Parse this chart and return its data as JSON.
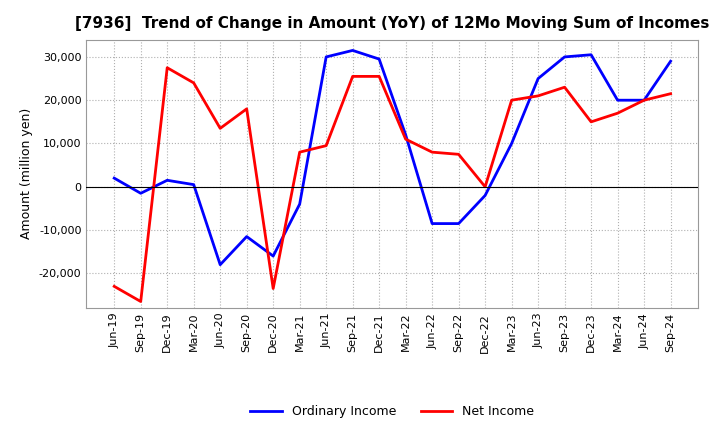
{
  "title": "[7936]  Trend of Change in Amount (YoY) of 12Mo Moving Sum of Incomes",
  "ylabel": "Amount (million yen)",
  "x_labels": [
    "Jun-19",
    "Sep-19",
    "Dec-19",
    "Mar-20",
    "Jun-20",
    "Sep-20",
    "Dec-20",
    "Mar-21",
    "Jun-21",
    "Sep-21",
    "Dec-21",
    "Mar-22",
    "Jun-22",
    "Sep-22",
    "Dec-22",
    "Mar-23",
    "Jun-23",
    "Sep-23",
    "Dec-23",
    "Mar-24",
    "Jun-24",
    "Sep-24"
  ],
  "ordinary_income": [
    2000,
    -1500,
    1500,
    500,
    -18000,
    -11500,
    -16000,
    -4000,
    30000,
    31500,
    29500,
    12000,
    -8500,
    -8500,
    -2000,
    10000,
    25000,
    30000,
    30500,
    20000,
    20000,
    29000
  ],
  "net_income": [
    -23000,
    -26500,
    27500,
    24000,
    13500,
    18000,
    -23500,
    8000,
    9500,
    25500,
    25500,
    11000,
    8000,
    7500,
    0,
    20000,
    21000,
    23000,
    15000,
    17000,
    20000,
    21500
  ],
  "ordinary_color": "#0000ff",
  "net_color": "#ff0000",
  "background_color": "#ffffff",
  "grid_color": "#b0b0b0",
  "ylim": [
    -28000,
    34000
  ],
  "yticks": [
    -20000,
    -10000,
    0,
    10000,
    20000,
    30000
  ],
  "legend_ordinary": "Ordinary Income",
  "legend_net": "Net Income",
  "line_width": 2.0,
  "title_fontsize": 11,
  "ylabel_fontsize": 9,
  "tick_fontsize": 8
}
